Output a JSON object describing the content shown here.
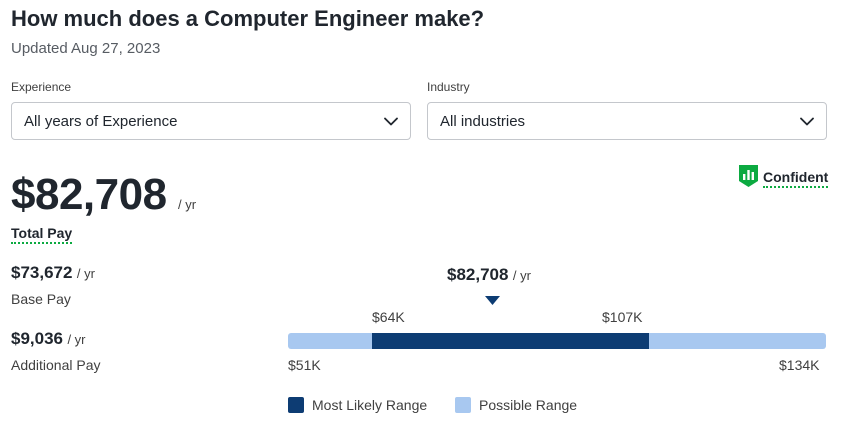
{
  "header": {
    "title": "How much does a Computer Engineer make?",
    "updated": "Updated Aug 27, 2023"
  },
  "filters": {
    "experience": {
      "label": "Experience",
      "value": "All years of Experience"
    },
    "industry": {
      "label": "Industry",
      "value": "All industries"
    }
  },
  "confidence": {
    "label": "Confident",
    "icon": "bar-chart-shield-icon",
    "color": "#0caa41"
  },
  "total": {
    "amount": "$82,708",
    "unit": "/ yr",
    "label": "Total Pay"
  },
  "base": {
    "amount": "$73,672",
    "unit": "/ yr",
    "label": "Base Pay"
  },
  "additional": {
    "amount": "$9,036",
    "unit": "/ yr",
    "label": "Additional Pay"
  },
  "range": {
    "median": {
      "amount": "$82,708",
      "unit": "/ yr"
    },
    "likely_low_label": "$64K",
    "likely_high_label": "$107K",
    "possible_low_label": "$51K",
    "possible_high_label": "$134K"
  },
  "legend": {
    "likely": {
      "label": "Most Likely Range",
      "color": "#0d3c73"
    },
    "possible": {
      "label": "Possible Range",
      "color": "#a8c8f0"
    }
  }
}
